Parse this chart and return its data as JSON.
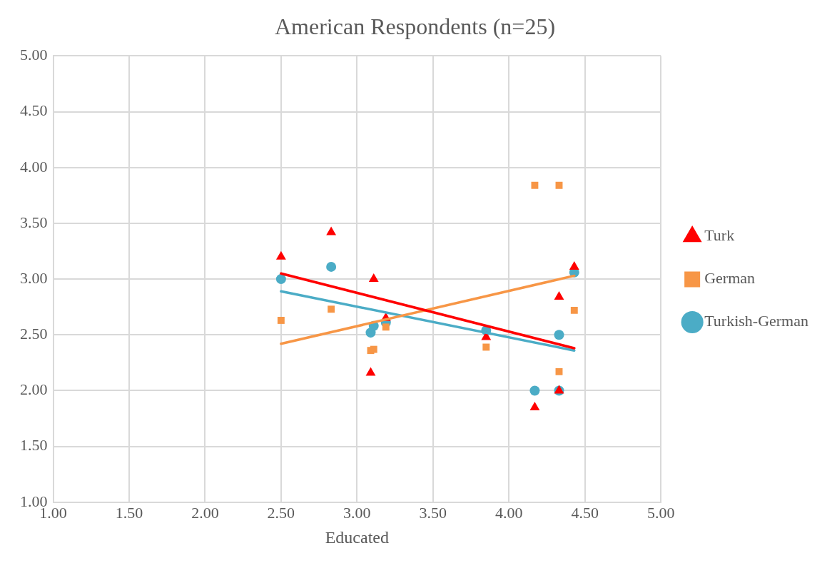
{
  "chart_data": {
    "type": "scatter",
    "title": "American Respondents (n=25)",
    "xlabel": "Educated",
    "xlim": [
      1,
      5
    ],
    "xticks": [
      {
        "value": 1,
        "label": "1.00"
      },
      {
        "value": 1.5,
        "label": "1.50"
      },
      {
        "value": 2,
        "label": "2.00"
      },
      {
        "value": 2.5,
        "label": "2.50"
      },
      {
        "value": 3,
        "label": "3.00"
      },
      {
        "value": 3.5,
        "label": "3.50"
      },
      {
        "value": 4,
        "label": "4.00"
      },
      {
        "value": 4.5,
        "label": "4.50"
      },
      {
        "value": 5,
        "label": "5.00"
      }
    ],
    "ylim": [
      1,
      5
    ],
    "yticks": [
      {
        "value": 1,
        "label": "1.00"
      },
      {
        "value": 1.5,
        "label": "1.50"
      },
      {
        "value": 2,
        "label": "2.00"
      },
      {
        "value": 2.5,
        "label": "2.50"
      },
      {
        "value": 3,
        "label": "3.00"
      },
      {
        "value": 3.5,
        "label": "3.50"
      },
      {
        "value": 4,
        "label": "4.00"
      },
      {
        "value": 4.5,
        "label": "4.50"
      },
      {
        "value": 5,
        "label": "5.00"
      }
    ],
    "grid": true,
    "legend": "right",
    "series": [
      {
        "name": "Turk",
        "color": "#ff0000",
        "marker": "triangle",
        "x": [
          2.5,
          2.83,
          3.11,
          3.09,
          3.19,
          3.85,
          4.17,
          4.33,
          4.33,
          4.43
        ],
        "values": [
          3.2,
          3.42,
          3.0,
          2.16,
          2.65,
          2.48,
          1.85,
          2.84,
          2.0,
          3.11
        ]
      },
      {
        "name": "German",
        "color": "#f79646",
        "marker": "square",
        "x": [
          2.5,
          2.83,
          3.09,
          3.11,
          3.19,
          3.85,
          4.17,
          4.33,
          4.33,
          4.43
        ],
        "values": [
          2.63,
          2.73,
          2.36,
          2.37,
          2.57,
          2.39,
          3.84,
          3.84,
          2.17,
          2.72
        ]
      },
      {
        "name": "Turkish-German",
        "color": "#4bacc6",
        "marker": "circle",
        "x": [
          2.5,
          2.83,
          3.09,
          3.11,
          3.19,
          3.85,
          4.17,
          4.33,
          4.33,
          4.43
        ],
        "values": [
          3.0,
          3.11,
          2.52,
          2.58,
          2.61,
          2.54,
          2.0,
          2.5,
          2.0,
          3.06
        ]
      },
      {
        "type": "line",
        "color": "#ff0000",
        "marker": "none",
        "x": [
          2.5,
          4.43
        ],
        "values": [
          3.05,
          2.38
        ]
      },
      {
        "type": "line",
        "color": "#f79646",
        "marker": "none",
        "x": [
          2.5,
          4.43
        ],
        "values": [
          2.42,
          3.03
        ]
      },
      {
        "type": "line",
        "color": "#4bacc6",
        "marker": "none",
        "x": [
          2.5,
          4.43
        ],
        "values": [
          2.89,
          2.36
        ]
      }
    ]
  }
}
